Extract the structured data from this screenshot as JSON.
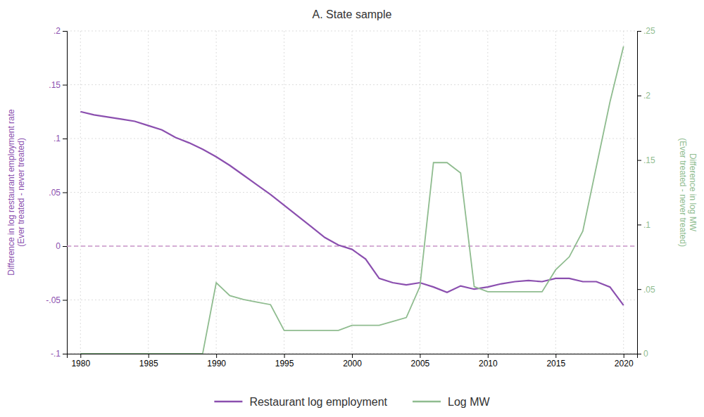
{
  "chart_data": {
    "type": "line",
    "title": "A. State sample",
    "y_label": "Difference in log restaurant employment rate\n(Ever treated - never treated)",
    "y2_label": "Difference in log MW\n(Ever treated - never treated)",
    "xlim": [
      1979,
      2021
    ],
    "xticks": [
      1980,
      1985,
      1990,
      1995,
      2000,
      2005,
      2010,
      2015,
      2020
    ],
    "ylim": [
      -0.1,
      0.2
    ],
    "yticks": [
      {
        "value": -0.1,
        "label": "-.1"
      },
      {
        "value": -0.05,
        "label": "-.05"
      },
      0,
      {
        "value": 0.05,
        "label": ".05"
      },
      {
        "value": 0.1,
        "label": ".1"
      },
      {
        "value": 0.15,
        "label": ".15"
      },
      {
        "value": 0.2,
        "label": ".2"
      }
    ],
    "y2lim": [
      0.0,
      0.25
    ],
    "y2ticks": [
      0,
      {
        "value": 0.05,
        "label": ".05"
      },
      {
        "value": 0.1,
        "label": ".1"
      },
      {
        "value": 0.15,
        "label": ".15"
      },
      {
        "value": 0.2,
        "label": ".2"
      },
      {
        "value": 0.25,
        "label": ".25"
      }
    ],
    "grid": true,
    "legend": "bottom",
    "x": [
      1980,
      1981,
      1982,
      1983,
      1984,
      1985,
      1986,
      1987,
      1988,
      1989,
      1990,
      1991,
      1992,
      1993,
      1994,
      1995,
      1996,
      1997,
      1998,
      1999,
      2000,
      2001,
      2002,
      2003,
      2004,
      2005,
      2006,
      2007,
      2008,
      2009,
      2010,
      2011,
      2012,
      2013,
      2014,
      2015,
      2016,
      2017,
      2018,
      2019,
      2020
    ],
    "series": [
      {
        "name": "Restaurant log employment",
        "color": "#8B4FAF",
        "values": [
          0.125,
          0.122,
          0.12,
          0.118,
          0.116,
          0.112,
          0.108,
          0.101,
          0.096,
          0.09,
          0.083,
          0.075,
          0.066,
          0.057,
          0.048,
          0.038,
          0.028,
          0.018,
          0.008,
          0.001,
          -0.003,
          -0.012,
          -0.03,
          -0.034,
          -0.036,
          -0.034,
          -0.038,
          -0.043,
          -0.037,
          -0.04,
          -0.038,
          -0.035,
          -0.033,
          -0.032,
          -0.033,
          -0.03,
          -0.03,
          -0.033,
          -0.033,
          -0.038,
          -0.055
        ]
      },
      {
        "name": "Log MW",
        "color": "#8fbc8f",
        "axis": "y2",
        "values": [
          0.0,
          0.0,
          0.0,
          0.0,
          0.0,
          0.0,
          0.0,
          0.0,
          0.0,
          0.0,
          0.055,
          0.045,
          0.042,
          0.04,
          0.038,
          0.018,
          0.018,
          0.018,
          0.018,
          0.018,
          0.022,
          0.022,
          0.022,
          0.025,
          0.028,
          0.052,
          0.148,
          0.148,
          0.14,
          0.052,
          0.048,
          0.048,
          0.048,
          0.048,
          0.048,
          0.065,
          0.075,
          0.095,
          0.145,
          0.195,
          0.238
        ]
      }
    ],
    "hlines": [
      {
        "y": 0,
        "color": "#c994c9",
        "line_style": "dashed"
      }
    ]
  }
}
